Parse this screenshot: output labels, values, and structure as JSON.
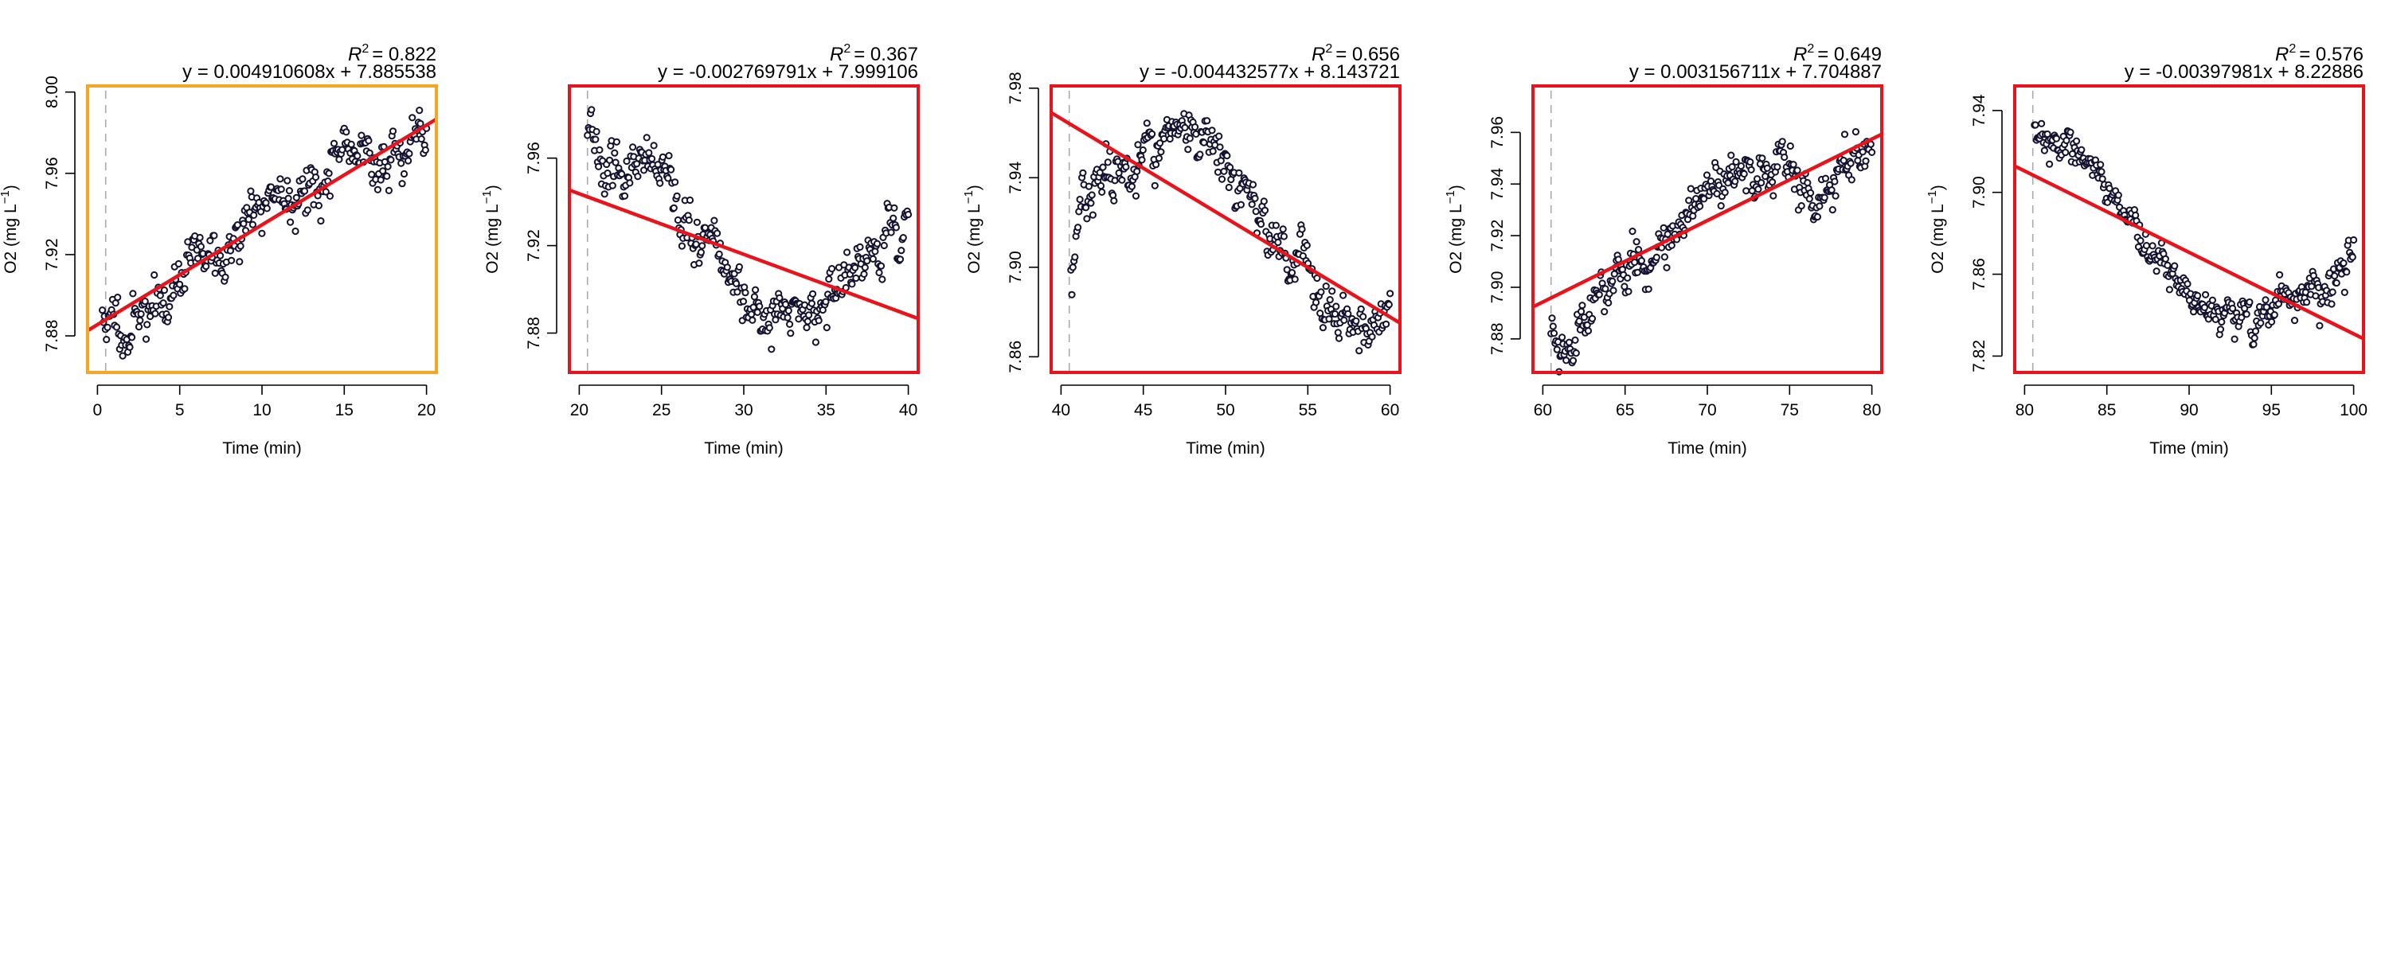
{
  "chart_data": [
    {
      "type": "scatter",
      "xlabel": "Time (min)",
      "ylabel": "O2 (mg L",
      "ylabel_superscript": "−1",
      "ylabel_close": ")",
      "r2_label": "R",
      "r2_value": "= 0.822",
      "equation": "y = 0.004910608x + 7.885538",
      "slope": 0.004910608,
      "intercept": 7.885538,
      "xlim": [
        -0.6,
        20.6
      ],
      "ylim": [
        7.862,
        8.003
      ],
      "xticks": [
        0,
        5,
        10,
        15,
        20
      ],
      "yticks": [
        7.88,
        7.92,
        7.96,
        8.0
      ],
      "ytick_labels": [
        "7.88",
        "7.92",
        "7.96",
        "8.00"
      ],
      "start_marker_x": 0.5,
      "frame_color": "#f5a623",
      "fit_color": "#e8131b",
      "point_color": "#131130",
      "trend": [
        [
          0.3,
          7.888
        ],
        [
          1.5,
          7.884
        ],
        [
          3,
          7.892
        ],
        [
          5,
          7.905
        ],
        [
          6,
          7.925
        ],
        [
          8,
          7.918
        ],
        [
          10,
          7.947
        ],
        [
          12,
          7.953
        ],
        [
          14,
          7.958
        ],
        [
          16,
          7.971
        ],
        [
          18,
          7.966
        ],
        [
          20,
          7.976
        ]
      ],
      "noise": 0.008,
      "n_points": 320,
      "seed": 11
    },
    {
      "type": "scatter",
      "xlabel": "Time (min)",
      "ylabel": "O2 (mg L",
      "ylabel_superscript": "−1",
      "ylabel_close": ")",
      "r2_label": "R",
      "r2_value": "= 0.367",
      "equation": "y = -0.002769791x + 7.999106",
      "slope": -0.002769791,
      "intercept": 7.999106,
      "xlim": [
        19.4,
        40.6
      ],
      "ylim": [
        7.862,
        7.993
      ],
      "xticks": [
        20,
        25,
        30,
        35,
        40
      ],
      "yticks": [
        7.88,
        7.92,
        7.96
      ],
      "ytick_labels": [
        "7.88",
        "7.92",
        "7.96"
      ],
      "start_marker_x": 20.5,
      "frame_color": "#e8131b",
      "fit_color": "#e8131b",
      "point_color": "#131130",
      "trend": [
        [
          20.5,
          7.978
        ],
        [
          21.5,
          7.968
        ],
        [
          23,
          7.955
        ],
        [
          25,
          7.94
        ],
        [
          27,
          7.923
        ],
        [
          29,
          7.905
        ],
        [
          31,
          7.892
        ],
        [
          33,
          7.884
        ],
        [
          35,
          7.893
        ],
        [
          37,
          7.908
        ],
        [
          39,
          7.928
        ],
        [
          40,
          7.935
        ]
      ],
      "noise": 0.007,
      "n_points": 320,
      "seed": 23
    },
    {
      "type": "scatter",
      "xlabel": "Time (min)",
      "ylabel": "O2 (mg L",
      "ylabel_superscript": "−1",
      "ylabel_close": ")",
      "r2_label": "R",
      "r2_value": "= 0.656",
      "equation": "y = -0.004432577x + 8.143721",
      "slope": -0.004432577,
      "intercept": 8.143721,
      "xlim": [
        39.4,
        60.6
      ],
      "ylim": [
        7.853,
        7.981
      ],
      "xticks": [
        40,
        45,
        50,
        55,
        60
      ],
      "yticks": [
        7.86,
        7.9,
        7.94,
        7.98
      ],
      "ytick_labels": [
        "7.86",
        "7.90",
        "7.94",
        "7.98"
      ],
      "start_marker_x": 40.5,
      "frame_color": "#e8131b",
      "fit_color": "#e8131b",
      "point_color": "#131130",
      "trend": [
        [
          40.6,
          7.895
        ],
        [
          41.3,
          7.935
        ],
        [
          43,
          7.94
        ],
        [
          45,
          7.955
        ],
        [
          47,
          7.962
        ],
        [
          49,
          7.945
        ],
        [
          51,
          7.93
        ],
        [
          53,
          7.912
        ],
        [
          55,
          7.897
        ],
        [
          57,
          7.882
        ],
        [
          59,
          7.873
        ],
        [
          60,
          7.878
        ]
      ],
      "noise": 0.007,
      "n_points": 320,
      "seed": 37
    },
    {
      "type": "scatter",
      "xlabel": "Time (min)",
      "ylabel": "O2 (mg L",
      "ylabel_superscript": "−1",
      "ylabel_close": ")",
      "r2_label": "R",
      "r2_value": "= 0.649",
      "equation": "y = 0.003156711x + 7.704887",
      "slope": 0.003156711,
      "intercept": 7.704887,
      "xlim": [
        59.4,
        80.6
      ],
      "ylim": [
        7.867,
        7.978
      ],
      "xticks": [
        60,
        65,
        70,
        75,
        80
      ],
      "yticks": [
        7.88,
        7.9,
        7.92,
        7.94,
        7.96
      ],
      "ytick_labels": [
        "7.88",
        "7.90",
        "7.92",
        "7.94",
        "7.96"
      ],
      "start_marker_x": 60.5,
      "frame_color": "#e8131b",
      "fit_color": "#e8131b",
      "point_color": "#131130",
      "trend": [
        [
          60.5,
          7.883
        ],
        [
          61.5,
          7.878
        ],
        [
          63,
          7.895
        ],
        [
          65,
          7.905
        ],
        [
          67,
          7.918
        ],
        [
          69,
          7.93
        ],
        [
          71,
          7.94
        ],
        [
          73,
          7.945
        ],
        [
          75,
          7.948
        ],
        [
          77,
          7.94
        ],
        [
          79,
          7.955
        ],
        [
          80,
          7.955
        ]
      ],
      "noise": 0.006,
      "n_points": 320,
      "seed": 53
    },
    {
      "type": "scatter",
      "xlabel": "Time (min)",
      "ylabel": "O2 (mg L",
      "ylabel_superscript": "−1",
      "ylabel_close": ")",
      "r2_label": "R",
      "r2_value": "= 0.576",
      "equation": "y = -0.00397981x + 8.22886",
      "slope": -0.00397981,
      "intercept": 8.22886,
      "xlim": [
        79.4,
        100.6
      ],
      "ylim": [
        7.812,
        7.952
      ],
      "xticks": [
        80,
        85,
        90,
        95,
        100
      ],
      "yticks": [
        7.82,
        7.86,
        7.9,
        7.94
      ],
      "ytick_labels": [
        "7.82",
        "7.86",
        "7.90",
        "7.94"
      ],
      "start_marker_x": 80.5,
      "frame_color": "#e8131b",
      "fit_color": "#e8131b",
      "point_color": "#131130",
      "trend": [
        [
          80.6,
          7.935
        ],
        [
          82,
          7.928
        ],
        [
          84,
          7.91
        ],
        [
          86,
          7.89
        ],
        [
          88,
          7.87
        ],
        [
          90,
          7.853
        ],
        [
          92,
          7.838
        ],
        [
          94,
          7.838
        ],
        [
          96,
          7.852
        ],
        [
          98,
          7.845
        ],
        [
          99,
          7.86
        ],
        [
          100,
          7.875
        ]
      ],
      "noise": 0.006,
      "n_points": 320,
      "seed": 71
    }
  ]
}
